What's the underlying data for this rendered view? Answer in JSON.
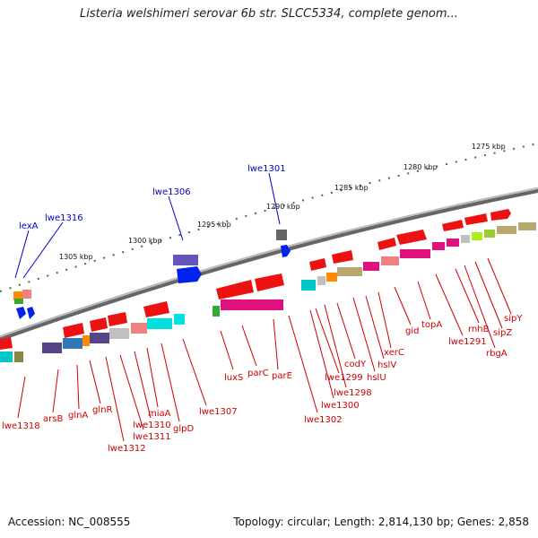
{
  "title": "Listeria welshimeri serovar 6b str. SLCC5334, complete genom...",
  "accession": "Accession: NC_008555",
  "summary": "Topology: circular; Length: 2,814,130 bp; Genes: 2,858",
  "scale_labels": [
    "1275 kbp",
    "1280 kbp",
    "1285 kbp",
    "1290 kbp",
    "1295 kbp",
    "1300 kbp",
    "1305 kbp"
  ],
  "blue_genes": [
    "lwe1301",
    "lwe1306",
    "lexA",
    "lwe1316"
  ],
  "red_genes": [
    "lwe1318",
    "arsB",
    "glnA",
    "glnR",
    "lwe1312",
    "lwe1311",
    "lwe1310",
    "miaA",
    "glpD",
    "lwe1307",
    "luxS",
    "parC",
    "parE",
    "lwe1302",
    "lwe1299",
    "lwe1300",
    "lwe1298",
    "codY",
    "hslU",
    "hslV",
    "xerC",
    "gid",
    "topA",
    "lwe1291",
    "rnhB",
    "rbgA",
    "sipZ",
    "sipY"
  ],
  "colors": {
    "backbone": "#808080",
    "red_label": "#cc0000",
    "blue_label": "#0000cc",
    "scale": "#2e7d32"
  }
}
